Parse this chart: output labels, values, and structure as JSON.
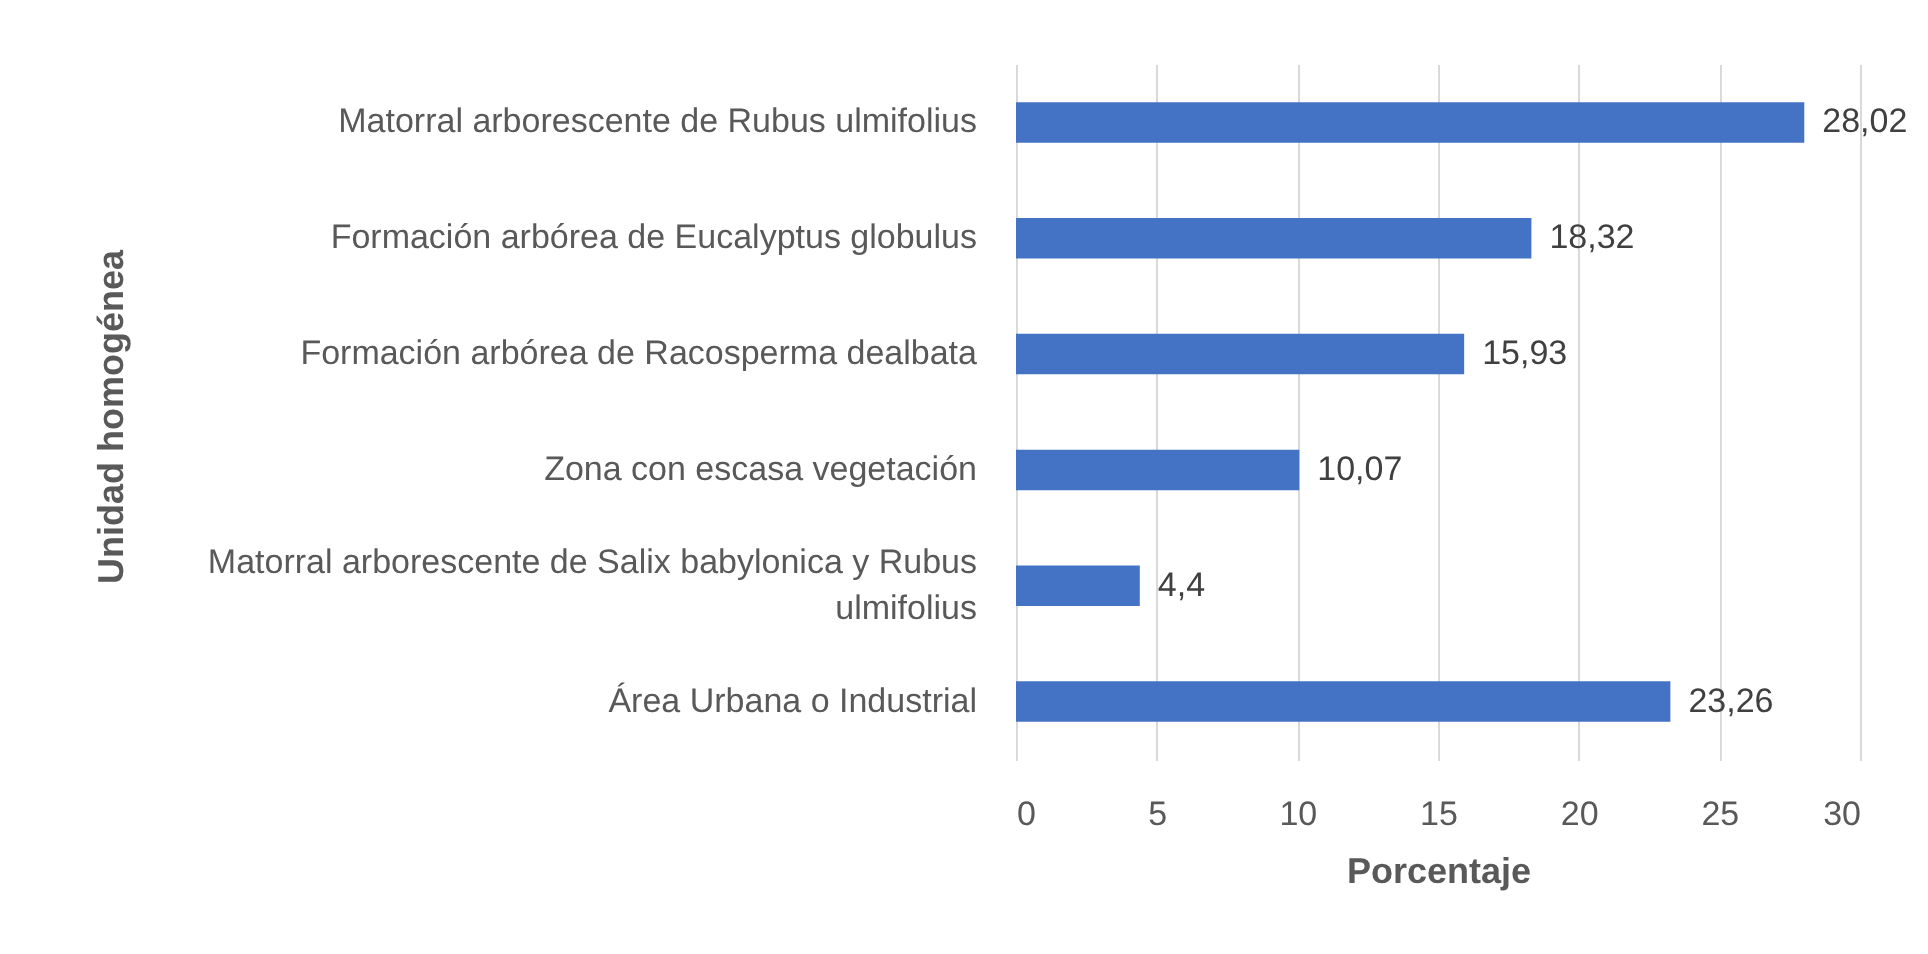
{
  "chart_data": {
    "type": "bar",
    "orientation": "horizontal",
    "xlabel": "Porcentaje",
    "ylabel": "Unidad homogénea",
    "categories": [
      "Matorral arborescente de Rubus ulmifolius",
      "Formación arbórea de Eucalyptus globulus",
      "Formación arbórea de Racosperma dealbata",
      "Zona con escasa vegetación",
      "Matorral arborescente de Salix babylonica y Rubus ulmifolius",
      "Área Urbana o Industrial"
    ],
    "values": [
      28.02,
      18.32,
      15.93,
      10.07,
      4.4,
      23.26
    ],
    "color": "#4472c4",
    "value_labels": [
      "28,02",
      "18,32",
      "15,93",
      "10,07",
      "4,4",
      "23,26"
    ],
    "xlim": [
      0,
      30
    ],
    "xticks": [
      0,
      5,
      10,
      15,
      20,
      25,
      30
    ],
    "grid": "x"
  }
}
